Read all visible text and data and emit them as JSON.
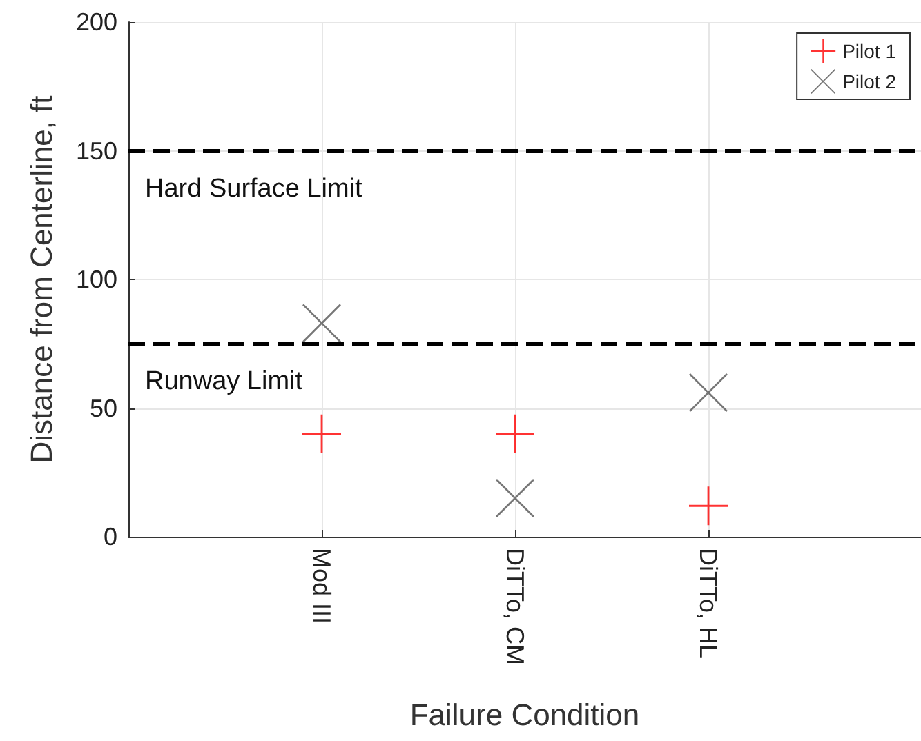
{
  "chart_data": {
    "type": "scatter",
    "xlabel": "Failure Condition",
    "ylabel": "Distance from Centerline, ft",
    "categories": [
      "Mod III",
      "DiTTo, CM",
      "DiTTo, HL"
    ],
    "series": [
      {
        "name": "Pilot 1",
        "color": "#ff0000",
        "marker": "cross",
        "values": [
          40,
          40,
          12
        ]
      },
      {
        "name": "Pilot 2",
        "color": "#555555",
        "marker": "x",
        "values": [
          83,
          15,
          56
        ]
      }
    ],
    "ylim": [
      0,
      200
    ],
    "yticks": [
      0,
      50,
      100,
      150,
      200
    ],
    "grid": true,
    "legend": "top right",
    "ref_lines": [
      {
        "axis": "y",
        "value": 150,
        "label": "Hard Surface Limit",
        "color": "#000000",
        "line_style": "dashed"
      },
      {
        "axis": "y",
        "value": 75,
        "label": "Runway Limit",
        "color": "#000000",
        "line_style": "dashed"
      }
    ]
  }
}
